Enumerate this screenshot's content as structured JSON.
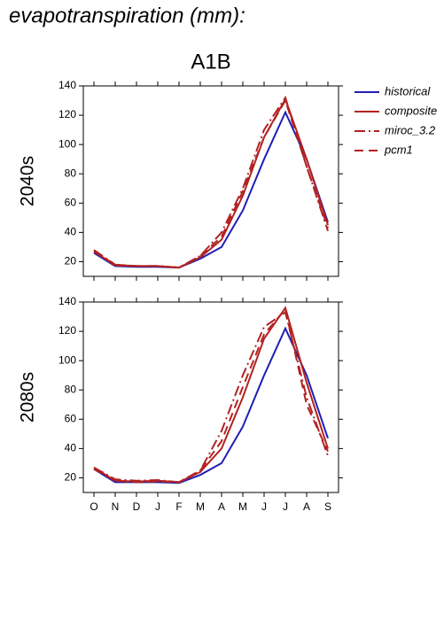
{
  "title": "evapotranspiration (mm):",
  "chart_data": [
    {
      "type": "line",
      "title": "A1B",
      "ylabel": "2040s",
      "ylim": [
        10,
        140
      ],
      "yticks": [
        20,
        40,
        60,
        80,
        100,
        120,
        140
      ],
      "series": [
        {
          "name": "historical",
          "color": "#1f1fb4",
          "dash": "none",
          "values": [
            26,
            17,
            16.5,
            16.5,
            16,
            22,
            30,
            55,
            90,
            122,
            90,
            47
          ]
        },
        {
          "name": "composite",
          "color": "#b22222",
          "dash": "none",
          "values": [
            27,
            17.5,
            17,
            17,
            16,
            23,
            35,
            65,
            105,
            131,
            90,
            45
          ]
        },
        {
          "name": "miroc_3.2",
          "color": "#b22222",
          "dash": "12 4 2 4",
          "values": [
            28,
            18,
            17,
            17,
            16,
            24,
            40,
            70,
            110,
            132,
            85,
            41
          ]
        },
        {
          "name": "pcm1",
          "color": "#b22222",
          "dash": "10 6",
          "values": [
            27,
            18,
            17,
            17,
            16,
            24,
            37,
            68,
            105,
            130,
            85,
            43
          ]
        }
      ]
    },
    {
      "type": "line",
      "ylabel": "2080s",
      "categories": [
        "O",
        "N",
        "D",
        "J",
        "F",
        "M",
        "A",
        "M",
        "J",
        "J",
        "A",
        "S"
      ],
      "ylim": [
        10,
        140
      ],
      "yticks": [
        20,
        40,
        60,
        80,
        100,
        120,
        140
      ],
      "series": [
        {
          "color": "#1f1fb4",
          "dash": "none",
          "values": [
            26,
            17,
            17,
            17,
            16.5,
            22,
            30,
            55,
            90,
            122,
            90,
            47
          ]
        },
        {
          "color": "#b22222",
          "dash": "none",
          "values": [
            27,
            18,
            17.5,
            18,
            17,
            24,
            40,
            75,
            115,
            136,
            85,
            40
          ]
        },
        {
          "color": "#b22222",
          "dash": "12 4 2 4",
          "values": [
            27,
            19,
            18,
            18.5,
            17,
            25,
            52,
            90,
            123,
            133,
            75,
            35
          ]
        },
        {
          "color": "#b22222",
          "dash": "10 6",
          "values": [
            26,
            18,
            17,
            17.5,
            17,
            25,
            45,
            82,
            118,
            135,
            70,
            38
          ]
        }
      ]
    }
  ]
}
